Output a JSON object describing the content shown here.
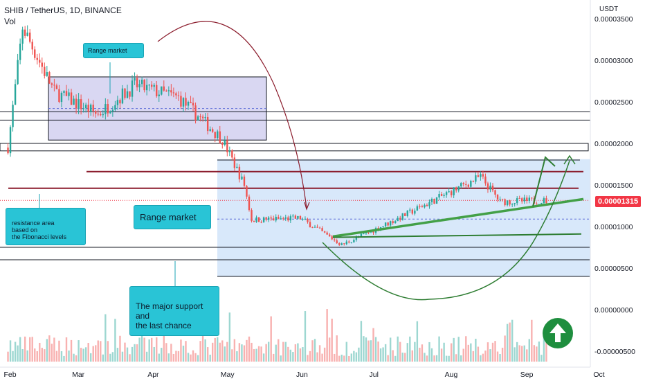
{
  "header": {
    "title": "SHIB / TetherUS, 1D, BINANCE",
    "subtitle": "Vol"
  },
  "axis": {
    "unit": "USDT",
    "y_ticks": [
      "0.00003500",
      "0.00003000",
      "0.00002500",
      "0.00002000",
      "0.00001500",
      "0.00001000",
      "0.00000500",
      "0.00000000",
      "-0.00000500"
    ],
    "x_ticks": [
      "Feb",
      "Mar",
      "Apr",
      "May",
      "Jun",
      "Jul",
      "Aug",
      "Sep",
      "Oct"
    ],
    "current_price": "0.00001315"
  },
  "annotations": {
    "range_top": "Range market",
    "range_mid": "Range market",
    "resistance": "resistance area\nbased on\nthe Fibonacci levels",
    "support": "The major support\nand\nthe last chance"
  },
  "colors": {
    "up": "#26a69a",
    "down": "#ef5350",
    "range_box_top": "#b9b6e8",
    "range_box_mid": "#b8d6f5",
    "resistance_line": "#8b1c2c",
    "arc": "#8b1c2c",
    "trend": "#43a047",
    "callout": "#29c4d6",
    "price_badge": "#f23645"
  },
  "chart_data": {
    "type": "candlestick",
    "symbol": "SHIB / TetherUS",
    "timeframe": "1D",
    "exchange": "BINANCE",
    "ylim": [
      -6e-06,
      3.6e-05
    ],
    "key_points": [
      {
        "date": "2022-02-01",
        "price": 1.95e-05
      },
      {
        "date": "2022-02-07",
        "price": 3.4e-05
      },
      {
        "date": "2022-02-20",
        "price": 2.62e-05
      },
      {
        "date": "2022-03-10",
        "price": 2.35e-05
      },
      {
        "date": "2022-03-25",
        "price": 2.7e-05
      },
      {
        "date": "2022-04-12",
        "price": 2.55e-05
      },
      {
        "date": "2022-04-30",
        "price": 2.05e-05
      },
      {
        "date": "2022-05-09",
        "price": 1.5e-05
      },
      {
        "date": "2022-05-12",
        "price": 1.08e-05
      },
      {
        "date": "2022-06-01",
        "price": 1.1e-05
      },
      {
        "date": "2022-06-18",
        "price": 7.8e-06
      },
      {
        "date": "2022-07-10",
        "price": 1.08e-05
      },
      {
        "date": "2022-08-14",
        "price": 1.6e-05
      },
      {
        "date": "2022-08-22",
        "price": 1.3e-05
      },
      {
        "date": "2022-09-10",
        "price": 1.31e-05
      }
    ],
    "levels": [
      2.8e-05,
      2.38e-05,
      2.28e-05,
      1.95e-05,
      1.8e-05,
      1.68e-05,
      1.46e-05,
      7.5e-06,
      6e-06,
      4e-06
    ],
    "current": 1.315e-05
  }
}
